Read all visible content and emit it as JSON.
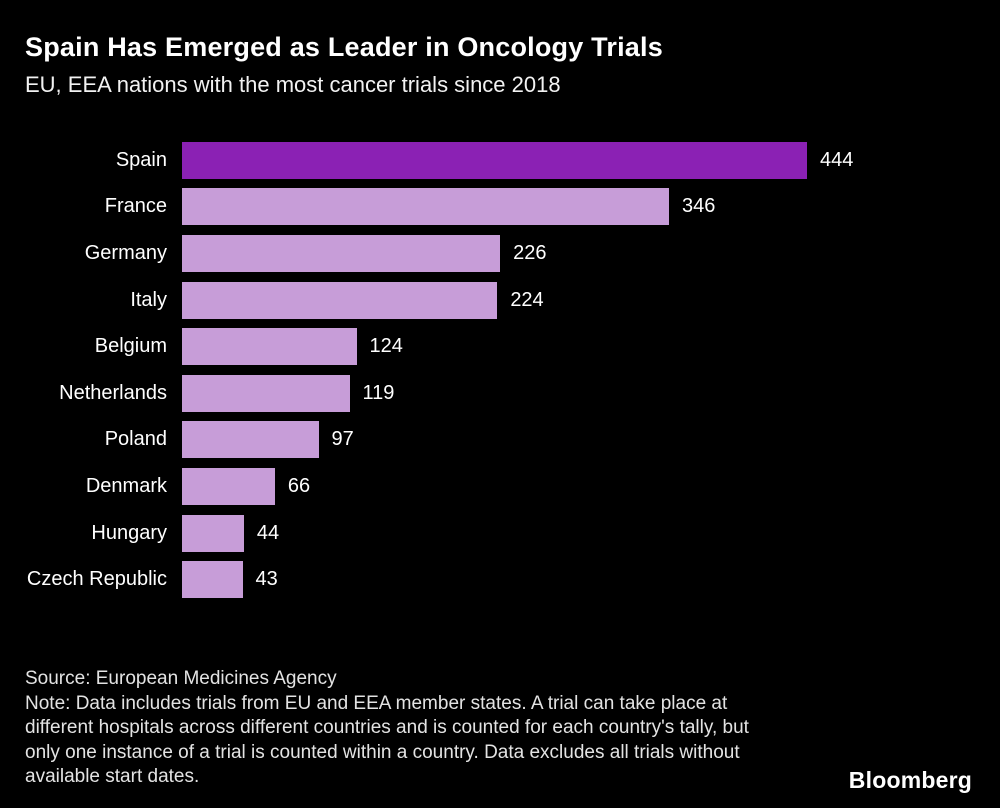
{
  "header": {
    "title": "Spain Has Emerged as Leader in Oncology Trials",
    "subtitle": "EU, EEA nations with the most cancer trials since 2018"
  },
  "footer": {
    "source": "Source: European Medicines Agency",
    "note": "Note: Data includes trials from EU and EEA member states. A trial can take place at different hospitals across different countries and is counted for each country's tally, but only one instance of a trial is counted within a country. Data excludes all trials without available start dates.",
    "brand": "Bloomberg"
  },
  "chart_data": {
    "type": "bar",
    "orientation": "horizontal",
    "title": "Spain Has Emerged as Leader in Oncology Trials",
    "subtitle": "EU, EEA nations with the most cancer trials since 2018",
    "categories": [
      "Spain",
      "France",
      "Germany",
      "Italy",
      "Belgium",
      "Netherlands",
      "Poland",
      "Denmark",
      "Hungary",
      "Czech Republic"
    ],
    "values": [
      444,
      346,
      226,
      224,
      124,
      119,
      97,
      66,
      44,
      43
    ],
    "value_labels": true,
    "xlim": [
      0,
      444
    ],
    "grid": false,
    "legend": "none",
    "highlight_index": 0,
    "highlight_color": "#8b21b4",
    "bar_color": "#c79dd8",
    "background_color": "#000000",
    "text_color": "#ffffff"
  }
}
